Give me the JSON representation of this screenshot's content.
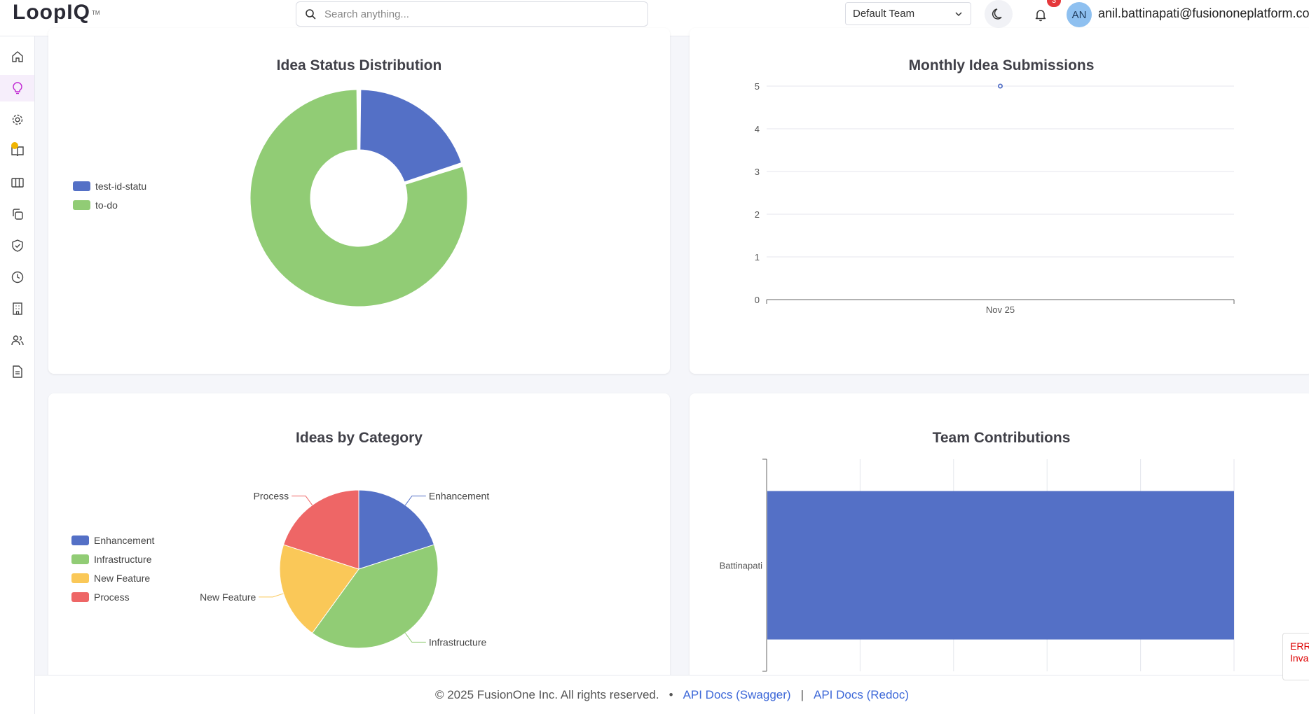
{
  "app": {
    "logo_text": "LoopIQ",
    "logo_tm": "TM"
  },
  "header": {
    "search_placeholder": "Search anything...",
    "team_selected": "Default Team",
    "notification_count": "3",
    "avatar_initials": "AN",
    "user_email": "anil.battinapati@fusiononeplatform.co"
  },
  "sidebar": {
    "items": [
      {
        "icon": "home-icon"
      },
      {
        "icon": "lightbulb-icon",
        "active": true
      },
      {
        "icon": "gear-icon"
      },
      {
        "icon": "book-open-icon",
        "badge": true
      },
      {
        "icon": "columns-icon"
      },
      {
        "icon": "copy-icon"
      },
      {
        "icon": "shield-check-icon"
      },
      {
        "icon": "clock-icon"
      },
      {
        "icon": "building-icon"
      },
      {
        "icon": "users-icon"
      },
      {
        "icon": "file-text-icon"
      }
    ]
  },
  "colors": {
    "blue": "#5470c6",
    "green": "#91cc75",
    "yellow": "#fac858",
    "red": "#ee6666",
    "accent": "#c026d3"
  },
  "charts": {
    "status": {
      "title": "Idea Status Distribution"
    },
    "monthly": {
      "title": "Monthly Idea Submissions"
    },
    "category": {
      "title": "Ideas by Category"
    },
    "team": {
      "title": "Team Contributions"
    }
  },
  "chart_data": [
    {
      "type": "pie",
      "variant": "donut",
      "title": "Idea Status Distribution",
      "categories": [
        "test-id-statu",
        "to-do"
      ],
      "values": [
        1,
        4
      ],
      "legend_placement": "left"
    },
    {
      "type": "line",
      "title": "Monthly Idea Submissions",
      "x": [
        "Nov 25"
      ],
      "y": [
        5
      ],
      "ylim": [
        0,
        5
      ],
      "yticks": [
        0,
        1,
        2,
        3,
        4,
        5
      ],
      "grid": true
    },
    {
      "type": "pie",
      "title": "Ideas by Category",
      "categories": [
        "Enhancement",
        "Infrastructure",
        "New Feature",
        "Process"
      ],
      "values": [
        1,
        2,
        1,
        1
      ],
      "legend_placement": "left"
    },
    {
      "type": "bar",
      "orientation": "horizontal",
      "title": "Team Contributions",
      "categories": [
        "Battinapati"
      ],
      "values": [
        5
      ],
      "grid": true
    }
  ],
  "footer": {
    "copyright": "© 2025 FusionOne Inc. All rights reserved.",
    "bullet": "•",
    "swagger": "API Docs (Swagger)",
    "divider": "|",
    "redoc": "API Docs (Redoc)"
  },
  "error_widget": {
    "line1": "ERR",
    "line2": "Inva"
  }
}
